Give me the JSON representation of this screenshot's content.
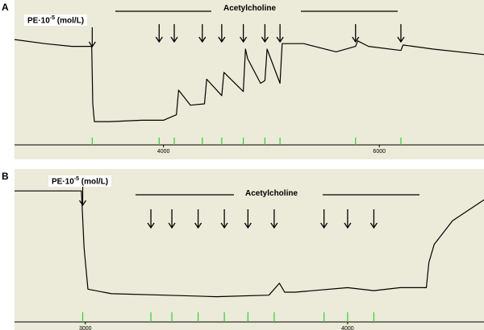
{
  "chart_data": [
    {
      "type": "line",
      "panel": "A",
      "pe_label": {
        "prefix": "PE·10",
        "exp": "-5",
        "suffix": " (mol/L)"
      },
      "annotation": "Acetylcholine",
      "x_ticks": [
        "4000",
        "6000"
      ],
      "x_tick_values": [
        4000,
        6000
      ],
      "xlim": [
        2620,
        6970
      ],
      "pe_addition_x": 3340,
      "ach_addition_x": [
        3960,
        4100,
        4360,
        4540,
        4740,
        4940,
        5080,
        5780,
        6200
      ],
      "trace_x": [
        2620,
        2900,
        3150,
        3300,
        3335,
        3345,
        3360,
        3500,
        3800,
        4000,
        4120,
        4140,
        4250,
        4380,
        4400,
        4540,
        4560,
        4740,
        4760,
        4780,
        4900,
        4940,
        4960,
        5080,
        5100,
        5300,
        5600,
        5780,
        5800,
        5900,
        6200,
        6220,
        6500,
        6970
      ],
      "trace_y": [
        0.77,
        0.74,
        0.72,
        0.72,
        0.72,
        0.3,
        0.17,
        0.17,
        0.18,
        0.18,
        0.22,
        0.4,
        0.29,
        0.3,
        0.48,
        0.36,
        0.53,
        0.39,
        0.7,
        0.63,
        0.45,
        0.47,
        0.7,
        0.45,
        0.74,
        0.74,
        0.68,
        0.72,
        0.76,
        0.72,
        0.69,
        0.73,
        0.7,
        0.66
      ]
    },
    {
      "type": "line",
      "panel": "B",
      "pe_label": {
        "prefix": "PE·10",
        "exp": "-5",
        "suffix": " (mol/L)"
      },
      "annotation": "Acetylcholine",
      "x_ticks": [
        "3000",
        "4000"
      ],
      "x_tick_values": [
        3000,
        4000
      ],
      "xlim": [
        2730,
        4520
      ],
      "pe_addition_x": 2990,
      "ach_addition_x": [
        3250,
        3330,
        3430,
        3530,
        3620,
        3720,
        3910,
        4000,
        4100
      ],
      "trace_x": [
        2730,
        2900,
        2975,
        2985,
        2995,
        3010,
        3100,
        3300,
        3500,
        3700,
        3740,
        3760,
        3800,
        4000,
        4100,
        4200,
        4300,
        4310,
        4330,
        4400,
        4520
      ],
      "trace_y": [
        0.88,
        0.88,
        0.88,
        0.88,
        0.5,
        0.22,
        0.19,
        0.18,
        0.17,
        0.18,
        0.26,
        0.2,
        0.2,
        0.23,
        0.21,
        0.23,
        0.23,
        0.4,
        0.52,
        0.68,
        0.82
      ]
    }
  ]
}
